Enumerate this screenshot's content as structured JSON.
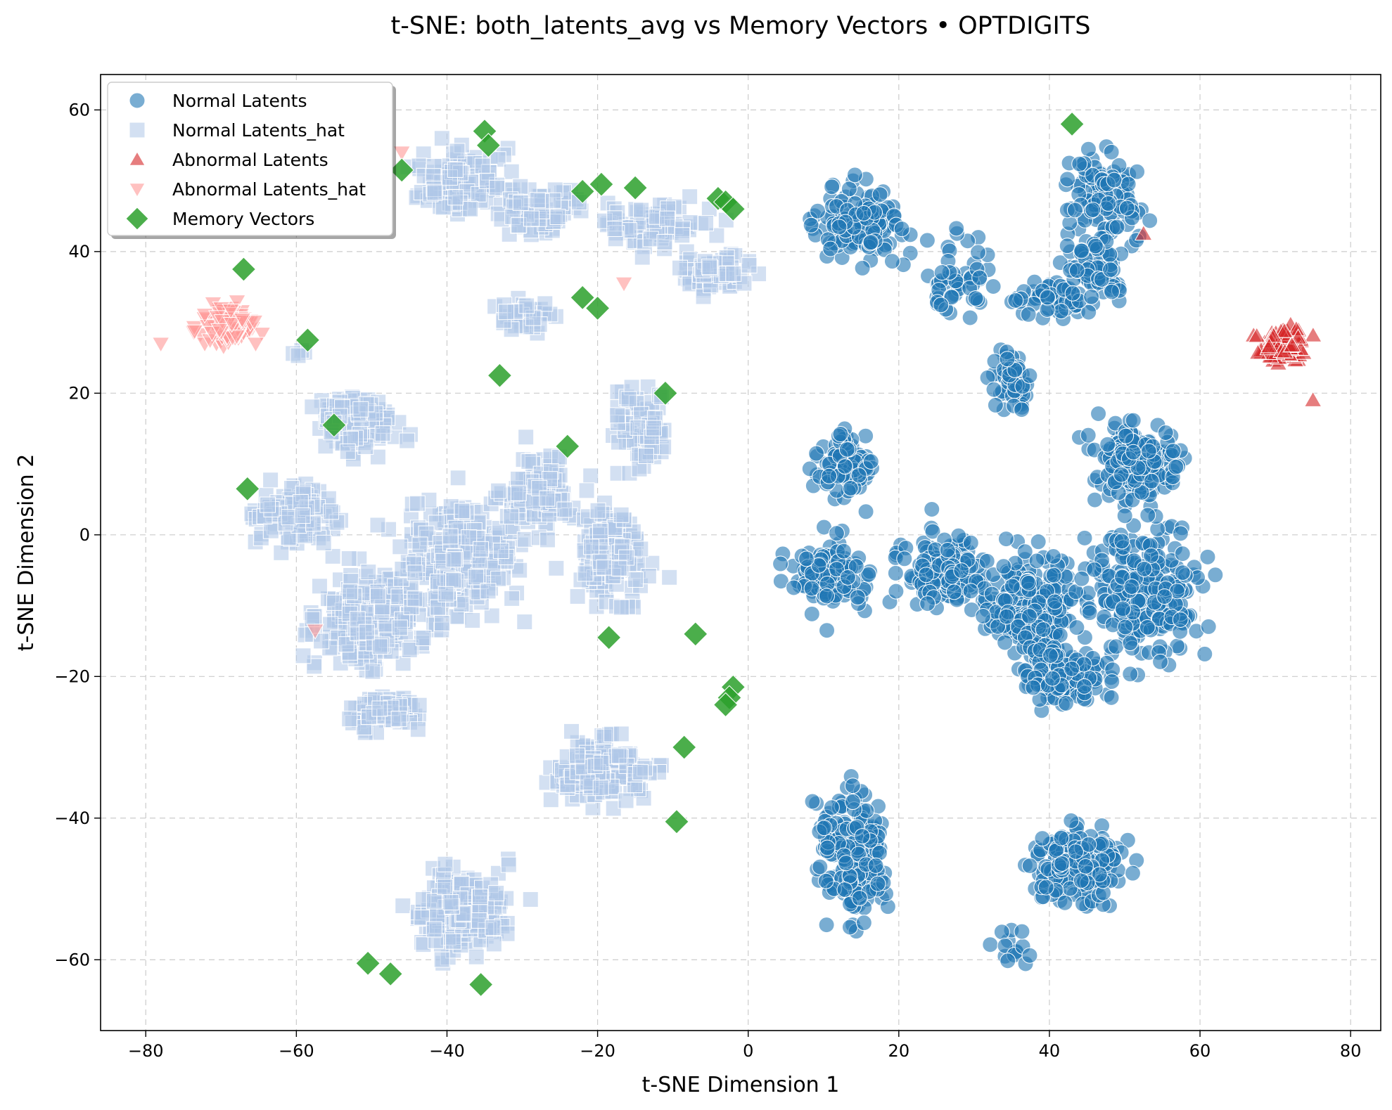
{
  "chart_data": {
    "type": "scatter",
    "title": "t-SNE: both_latents_avg vs Memory Vectors • OPTDIGITS",
    "xlabel": "t-SNE Dimension 1",
    "ylabel": "t-SNE Dimension 2",
    "xlim": [
      -86,
      84
    ],
    "ylim": [
      -70,
      65
    ],
    "xticks": [
      -80,
      -60,
      -40,
      -20,
      0,
      20,
      40,
      60,
      80
    ],
    "yticks": [
      -60,
      -40,
      -20,
      0,
      20,
      40,
      60
    ],
    "grid": true,
    "legend_position": "top-left",
    "legend": [
      "Normal Latents",
      "Normal Latents_hat",
      "Abnormal Latents",
      "Abnormal Latents_hat",
      "Memory Vectors"
    ],
    "series": [
      {
        "name": "Normal Latents",
        "marker": "circle",
        "color": "#1f77b4",
        "clusters": [
          {
            "cx": 15,
            "cy": 44,
            "rx": 9,
            "ry": 7,
            "n": 130
          },
          {
            "cx": 28,
            "cy": 36,
            "rx": 7,
            "ry": 8,
            "n": 50
          },
          {
            "cx": 40,
            "cy": 33,
            "rx": 8,
            "ry": 4,
            "n": 60
          },
          {
            "cx": 47,
            "cy": 48,
            "rx": 7,
            "ry": 8,
            "n": 110
          },
          {
            "cx": 46,
            "cy": 38,
            "rx": 6,
            "ry": 6,
            "n": 70
          },
          {
            "cx": 35,
            "cy": 22,
            "rx": 4,
            "ry": 5,
            "n": 60
          },
          {
            "cx": 13,
            "cy": 10,
            "rx": 5,
            "ry": 6,
            "n": 90
          },
          {
            "cx": 11,
            "cy": -6,
            "rx": 7,
            "ry": 7,
            "n": 130
          },
          {
            "cx": 26,
            "cy": -5,
            "rx": 8,
            "ry": 8,
            "n": 130
          },
          {
            "cx": 38,
            "cy": -10,
            "rx": 9,
            "ry": 10,
            "n": 240
          },
          {
            "cx": 53,
            "cy": -8,
            "rx": 10,
            "ry": 12,
            "n": 270
          },
          {
            "cx": 52,
            "cy": 10,
            "rx": 8,
            "ry": 8,
            "n": 170
          },
          {
            "cx": 42,
            "cy": -20,
            "rx": 8,
            "ry": 6,
            "n": 120
          },
          {
            "cx": 14,
            "cy": -45,
            "rx": 6,
            "ry": 13,
            "n": 200
          },
          {
            "cx": 44,
            "cy": -47,
            "rx": 8,
            "ry": 7,
            "n": 190
          },
          {
            "cx": 35,
            "cy": -58,
            "rx": 3,
            "ry": 3,
            "n": 14
          }
        ]
      },
      {
        "name": "Normal Latents_hat",
        "marker": "square",
        "color": "#aec7e8",
        "clusters": [
          {
            "cx": -38,
            "cy": 50,
            "rx": 9,
            "ry": 7,
            "n": 100
          },
          {
            "cx": -28,
            "cy": 46,
            "rx": 8,
            "ry": 5,
            "n": 70
          },
          {
            "cx": -12,
            "cy": 44,
            "rx": 10,
            "ry": 5,
            "n": 90
          },
          {
            "cx": -4,
            "cy": 37,
            "rx": 6,
            "ry": 4,
            "n": 70
          },
          {
            "cx": -30,
            "cy": 31,
            "rx": 5,
            "ry": 4,
            "n": 40
          },
          {
            "cx": -14,
            "cy": 15,
            "rx": 5,
            "ry": 8,
            "n": 70
          },
          {
            "cx": -52,
            "cy": 16,
            "rx": 8,
            "ry": 6,
            "n": 110
          },
          {
            "cx": -60,
            "cy": 3,
            "rx": 7,
            "ry": 7,
            "n": 110
          },
          {
            "cx": -50,
            "cy": -12,
            "rx": 10,
            "ry": 9,
            "n": 230
          },
          {
            "cx": -38,
            "cy": -3,
            "rx": 10,
            "ry": 12,
            "n": 250
          },
          {
            "cx": -28,
            "cy": 6,
            "rx": 7,
            "ry": 7,
            "n": 120
          },
          {
            "cx": -18,
            "cy": -3,
            "rx": 7,
            "ry": 9,
            "n": 130
          },
          {
            "cx": -48,
            "cy": -25,
            "rx": 7,
            "ry": 4,
            "n": 70
          },
          {
            "cx": -20,
            "cy": -33,
            "rx": 9,
            "ry": 6,
            "n": 190
          },
          {
            "cx": -38,
            "cy": -53,
            "rx": 8,
            "ry": 8,
            "n": 190
          },
          {
            "cx": -59,
            "cy": 26,
            "rx": 2,
            "ry": 2,
            "n": 4
          }
        ]
      },
      {
        "name": "Abnormal Latents",
        "marker": "triangle-up",
        "color": "#d62728",
        "clusters": [
          {
            "cx": 71,
            "cy": 27,
            "rx": 4,
            "ry": 4,
            "n": 90
          }
        ],
        "points": [
          [
            52.5,
            42.5
          ],
          [
            75,
            19
          ]
        ]
      },
      {
        "name": "Abnormal Latents_hat",
        "marker": "triangle-down",
        "color": "#ff9896",
        "clusters": [
          {
            "cx": -69,
            "cy": 30,
            "rx": 5,
            "ry": 4,
            "n": 110
          }
        ],
        "points": [
          [
            -46,
            54
          ],
          [
            -16.5,
            35.5
          ],
          [
            -57.5,
            -13.5
          ],
          [
            -78,
            27
          ]
        ]
      },
      {
        "name": "Memory Vectors",
        "marker": "diamond",
        "color": "#2ca02c",
        "points": [
          [
            43,
            58
          ],
          [
            -35,
            57
          ],
          [
            -34.5,
            55
          ],
          [
            -46,
            51.5
          ],
          [
            -22,
            48.5
          ],
          [
            -19.5,
            49.5
          ],
          [
            -15,
            49
          ],
          [
            -4,
            47.5
          ],
          [
            -3,
            47
          ],
          [
            -2,
            46
          ],
          [
            -67,
            37.5
          ],
          [
            -22,
            33.5
          ],
          [
            -20,
            32
          ],
          [
            -58.5,
            27.5
          ],
          [
            -33,
            22.5
          ],
          [
            -11,
            20
          ],
          [
            -55,
            15.5
          ],
          [
            -24,
            12.5
          ],
          [
            -66.5,
            6.5
          ],
          [
            -18.5,
            -14.5
          ],
          [
            -7,
            -14
          ],
          [
            -2,
            -21.5
          ],
          [
            -2.5,
            -23
          ],
          [
            -3,
            -24
          ],
          [
            -8.5,
            -30
          ],
          [
            -9.5,
            -40.5
          ],
          [
            -50.5,
            -60.5
          ],
          [
            -47.5,
            -62
          ],
          [
            -35.5,
            -63.5
          ]
        ]
      }
    ]
  }
}
